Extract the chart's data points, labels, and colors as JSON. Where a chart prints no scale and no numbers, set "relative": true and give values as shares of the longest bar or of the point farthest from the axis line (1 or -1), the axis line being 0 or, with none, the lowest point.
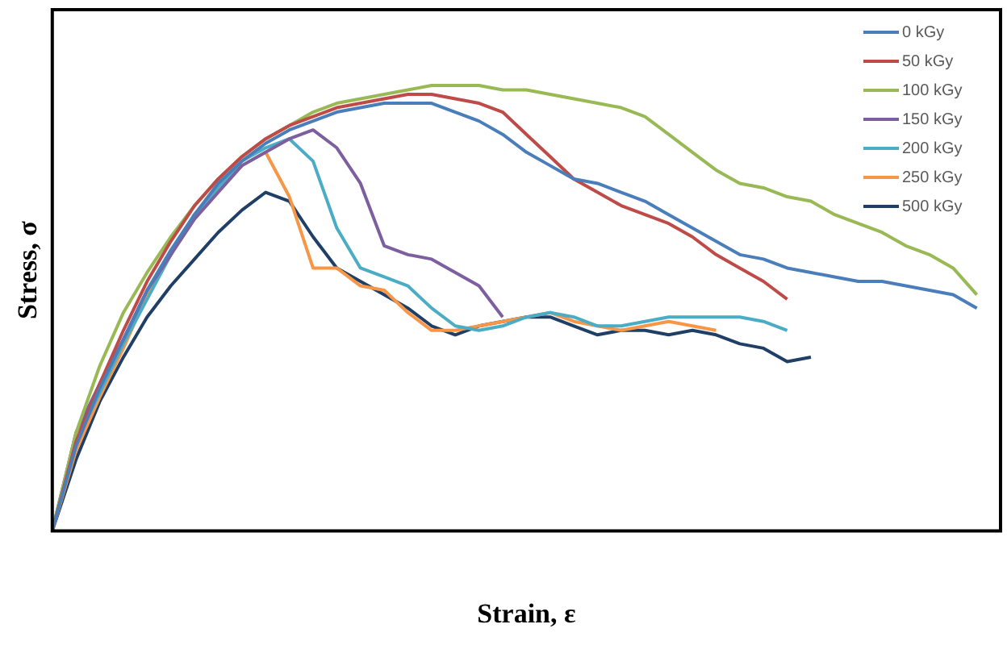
{
  "chart_data": {
    "type": "line",
    "xlabel": "Strain, ε",
    "ylabel": "Stress, σ",
    "relative": true,
    "grid": false,
    "legend": "top right",
    "marker": "none",
    "line_style": "solid",
    "categories": [
      null,
      null,
      null,
      null,
      null,
      null,
      null,
      null,
      null,
      null,
      null,
      null,
      null,
      null,
      null,
      null,
      null,
      null,
      null,
      null,
      null,
      null,
      null,
      null,
      null,
      null,
      null,
      null,
      null,
      null,
      null,
      null,
      null,
      null,
      null,
      null,
      null,
      null,
      null,
      null,
      null
    ],
    "series": [
      {
        "name": "0 kGy",
        "color": "#4a7ebb",
        "values": [
          0,
          0.19,
          0.32,
          0.43,
          0.54,
          0.63,
          0.71,
          0.78,
          0.83,
          0.87,
          0.9,
          0.92,
          0.94,
          0.95,
          0.96,
          0.96,
          0.96,
          0.94,
          0.92,
          0.89,
          0.85,
          0.82,
          0.79,
          0.78,
          0.76,
          0.74,
          0.71,
          0.68,
          0.65,
          0.62,
          0.61,
          0.59,
          0.58,
          0.57,
          0.56,
          0.56,
          0.55,
          0.54,
          0.53,
          0.5,
          null
        ]
      },
      {
        "name": "50 kGy",
        "color": "#be4b48",
        "values": [
          0,
          0.2,
          0.33,
          0.45,
          0.56,
          0.65,
          0.73,
          0.79,
          0.84,
          0.88,
          0.91,
          0.93,
          0.95,
          0.96,
          0.97,
          0.98,
          0.98,
          0.97,
          0.96,
          0.94,
          0.89,
          0.84,
          0.79,
          0.76,
          0.73,
          0.71,
          0.69,
          0.66,
          0.62,
          0.59,
          0.56,
          0.52,
          null,
          null,
          null,
          null,
          null,
          null,
          null,
          null,
          null
        ]
      },
      {
        "name": "100 kGy",
        "color": "#98b954",
        "values": [
          0,
          0.22,
          0.37,
          0.49,
          0.58,
          0.66,
          0.73,
          0.79,
          0.84,
          0.88,
          0.91,
          0.94,
          0.96,
          0.97,
          0.98,
          0.99,
          1,
          1,
          1,
          0.99,
          0.99,
          0.98,
          0.97,
          0.96,
          0.95,
          0.93,
          0.89,
          0.85,
          0.81,
          0.78,
          0.77,
          0.75,
          0.74,
          0.71,
          0.69,
          0.67,
          0.64,
          0.62,
          0.59,
          0.53,
          null
        ]
      },
      {
        "name": "150 kGy",
        "color": "#7d5fa0",
        "values": [
          0,
          0.22,
          0.33,
          0.43,
          0.54,
          0.62,
          0.7,
          0.76,
          0.82,
          0.85,
          0.88,
          0.9,
          0.86,
          0.78,
          0.64,
          0.62,
          0.61,
          0.58,
          0.55,
          0.48,
          null,
          null,
          null,
          null,
          null,
          null,
          null,
          null,
          null,
          null,
          null,
          null,
          null,
          null,
          null,
          null,
          null,
          null,
          null,
          null,
          null
        ]
      },
      {
        "name": "200 kGy",
        "color": "#4bacc6",
        "values": [
          0,
          0.2,
          0.31,
          0.42,
          0.52,
          0.62,
          0.71,
          0.77,
          0.83,
          0.86,
          0.88,
          0.83,
          0.68,
          0.59,
          0.57,
          0.55,
          0.5,
          0.46,
          0.45,
          0.46,
          0.48,
          0.49,
          0.48,
          0.46,
          0.46,
          0.47,
          0.48,
          0.48,
          0.48,
          0.48,
          0.47,
          0.45,
          null,
          null,
          null,
          null,
          null,
          null,
          null,
          null,
          null
        ]
      },
      {
        "name": "250 kGy",
        "color": "#f79646",
        "values": [
          0,
          0.18,
          0.3,
          0.41,
          0.53,
          0.62,
          0.71,
          0.77,
          0.82,
          0.85,
          0.75,
          0.59,
          0.59,
          0.55,
          0.54,
          0.49,
          0.45,
          0.45,
          0.46,
          0.47,
          0.48,
          0.49,
          0.47,
          0.46,
          0.45,
          0.46,
          0.47,
          0.46,
          0.45,
          null,
          null,
          null,
          null,
          null,
          null,
          null,
          null,
          null,
          null,
          null,
          null
        ]
      },
      {
        "name": "500 kGy",
        "color": "#1f3f66",
        "values": [
          0,
          0.16,
          0.29,
          0.39,
          0.48,
          0.55,
          0.61,
          0.67,
          0.72,
          0.76,
          0.74,
          0.66,
          0.59,
          0.56,
          0.53,
          0.5,
          0.46,
          0.44,
          0.46,
          0.47,
          0.48,
          0.48,
          0.46,
          0.44,
          0.45,
          0.45,
          0.44,
          0.45,
          0.44,
          0.42,
          0.41,
          0.38,
          0.39,
          null,
          null,
          null,
          null,
          null,
          null,
          null,
          null
        ]
      }
    ]
  }
}
